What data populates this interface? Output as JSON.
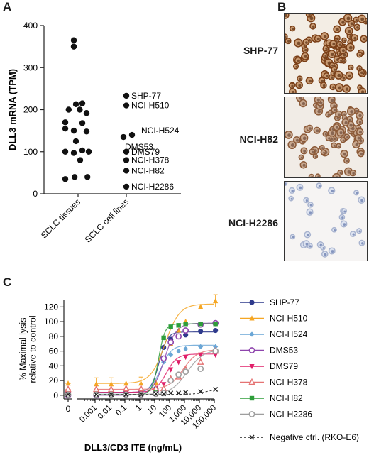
{
  "panels": {
    "a": "A",
    "b": "B",
    "c": "C"
  },
  "panel_b": {
    "images": [
      {
        "label": "SHP-77",
        "stain": "strong"
      },
      {
        "label": "NCI-H82",
        "stain": "moderate"
      },
      {
        "label": "NCI-H2286",
        "stain": "negative"
      }
    ]
  },
  "chart_data": [
    {
      "type": "scatter",
      "ylabel": "DLL3 mRNA (TPM)",
      "xlabel": "",
      "ylim": [
        0,
        400
      ],
      "yticks": [
        0,
        100,
        200,
        300,
        400
      ],
      "categories": [
        "SCLC tissues",
        "SCLC cell lines"
      ],
      "tissues": [
        {
          "x": -0.1,
          "y": 365
        },
        {
          "x": -0.1,
          "y": 350
        },
        {
          "x": 0.1,
          "y": 215
        },
        {
          "x": -0.05,
          "y": 213
        },
        {
          "x": -0.22,
          "y": 200
        },
        {
          "x": 0.04,
          "y": 200
        },
        {
          "x": 0.2,
          "y": 192
        },
        {
          "x": -0.3,
          "y": 170
        },
        {
          "x": 0.1,
          "y": 168
        },
        {
          "x": -0.3,
          "y": 155
        },
        {
          "x": -0.1,
          "y": 150
        },
        {
          "x": 0.2,
          "y": 148
        },
        {
          "x": -0.05,
          "y": 125
        },
        {
          "x": -0.3,
          "y": 100
        },
        {
          "x": 0.1,
          "y": 103
        },
        {
          "x": -0.1,
          "y": 97
        },
        {
          "x": 0.25,
          "y": 100
        },
        {
          "x": 0.05,
          "y": 80
        },
        {
          "x": -0.3,
          "y": 35
        },
        {
          "x": -0.08,
          "y": 40
        },
        {
          "x": 0.22,
          "y": 40
        }
      ],
      "cell_lines": [
        {
          "name": "SHP-77",
          "y": 233
        },
        {
          "name": "NCI-H510",
          "y": 210
        },
        {
          "name": "NCI-H524",
          "y": 140
        },
        {
          "name": "DMS53",
          "y": 135
        },
        {
          "name": "DMS79",
          "y": 100
        },
        {
          "name": "NCI-H378",
          "y": 80
        },
        {
          "name": "NCI-H82",
          "y": 55
        },
        {
          "name": "NCI-H2286",
          "y": 17
        }
      ]
    },
    {
      "type": "line",
      "xlabel": "DLL3/CD3 ITE (ng/mL)",
      "ylabel": "% Maximal lysis relative to control",
      "ylabel_lines": [
        "% Maximal lysis",
        "relative to control"
      ],
      "x_scale": "log",
      "xlim": [
        0.0001,
        100000
      ],
      "ylim": [
        -5,
        130
      ],
      "yticks": [
        0,
        20,
        40,
        60,
        80,
        100,
        120
      ],
      "xticks": [
        0.001,
        0.01,
        0.1,
        1,
        10,
        100,
        1000,
        10000,
        100000
      ],
      "xtick_labels": [
        "0.001",
        "0.01",
        "0.1",
        "1",
        "10",
        "100",
        "1,000",
        "10,000",
        "100,000"
      ],
      "zero_tick_label": "0",
      "x_doses": [
        0,
        0.0012,
        0.012,
        0.12,
        1.2,
        12,
        40,
        120,
        400,
        1200,
        12000,
        120000
      ],
      "series": [
        {
          "name": "SHP-77",
          "color": "#2e3a8c",
          "marker": "circle-filled",
          "dash": "",
          "values": [
            4,
            4,
            4,
            4,
            5,
            9,
            65,
            76,
            80,
            82,
            87,
            88
          ],
          "fit": {
            "bottom": 4,
            "top": 86,
            "ec50": 20,
            "hill": 1.6
          }
        },
        {
          "name": "NCI-H510",
          "color": "#f5a623",
          "marker": "triangle-filled",
          "dash": "",
          "values": [
            16,
            15,
            15,
            16,
            16,
            17,
            50,
            70,
            88,
            100,
            120,
            128
          ],
          "fit": {
            "bottom": 16,
            "top": 124,
            "ec50": 50,
            "hill": 0.9
          }
        },
        {
          "name": "NCI-H524",
          "color": "#6aa6d6",
          "marker": "diamond-filled",
          "dash": "",
          "values": [
            3,
            3,
            3,
            3,
            4,
            8,
            45,
            55,
            60,
            63,
            66,
            66
          ],
          "fit": {
            "bottom": 3,
            "top": 68,
            "ec50": 25,
            "hill": 1.2
          }
        },
        {
          "name": "DMS53",
          "color": "#8e44ad",
          "marker": "circle-open",
          "dash": "",
          "values": [
            0,
            0,
            1,
            1,
            1,
            6,
            50,
            72,
            80,
            88,
            96,
            98
          ],
          "fit": {
            "bottom": 0,
            "top": 98,
            "ec50": 45,
            "hill": 1.1
          }
        },
        {
          "name": "DMS79",
          "color": "#e0206a",
          "marker": "triangle-down-filled",
          "dash": "",
          "values": [
            4,
            4,
            4,
            4,
            5,
            6,
            15,
            35,
            45,
            52,
            55,
            55
          ],
          "fit": {
            "bottom": 4,
            "top": 56,
            "ec50": 60,
            "hill": 1.2
          }
        },
        {
          "name": "NCI-H378",
          "color": "#e57373",
          "marker": "triangle-open",
          "dash": "",
          "values": [
            8,
            8,
            8,
            9,
            9,
            9,
            9,
            22,
            25,
            35,
            45,
            60
          ],
          "fit": {
            "bottom": 8,
            "top": 62,
            "ec50": 800,
            "hill": 0.9
          }
        },
        {
          "name": "NCI-H82",
          "color": "#2e9e3a",
          "marker": "square-filled",
          "dash": "",
          "values": [
            1,
            1,
            1,
            1,
            1,
            4,
            78,
            93,
            95,
            97,
            97,
            97
          ],
          "fit": {
            "bottom": 1,
            "top": 97,
            "ec50": 18,
            "hill": 2.0
          }
        },
        {
          "name": "NCI-H2286",
          "color": "#9e9e9e",
          "marker": "circle-open",
          "dash": "",
          "values": [
            1,
            1,
            1,
            1,
            1,
            2,
            3,
            20,
            28,
            32,
            36,
            60
          ],
          "fit": {
            "bottom": 1,
            "top": 62,
            "ec50": 1500,
            "hill": 0.8
          }
        },
        {
          "name": "Negative ctrl. (RKO-E6)",
          "color": "#222222",
          "marker": "x",
          "dash": "3,3",
          "values": [
            1,
            1,
            1,
            1,
            1,
            2,
            2,
            3,
            3,
            4,
            5,
            8
          ],
          "fit": {
            "bottom": 1,
            "top": 9,
            "ec50": 30000,
            "hill": 1.0
          }
        }
      ]
    }
  ]
}
